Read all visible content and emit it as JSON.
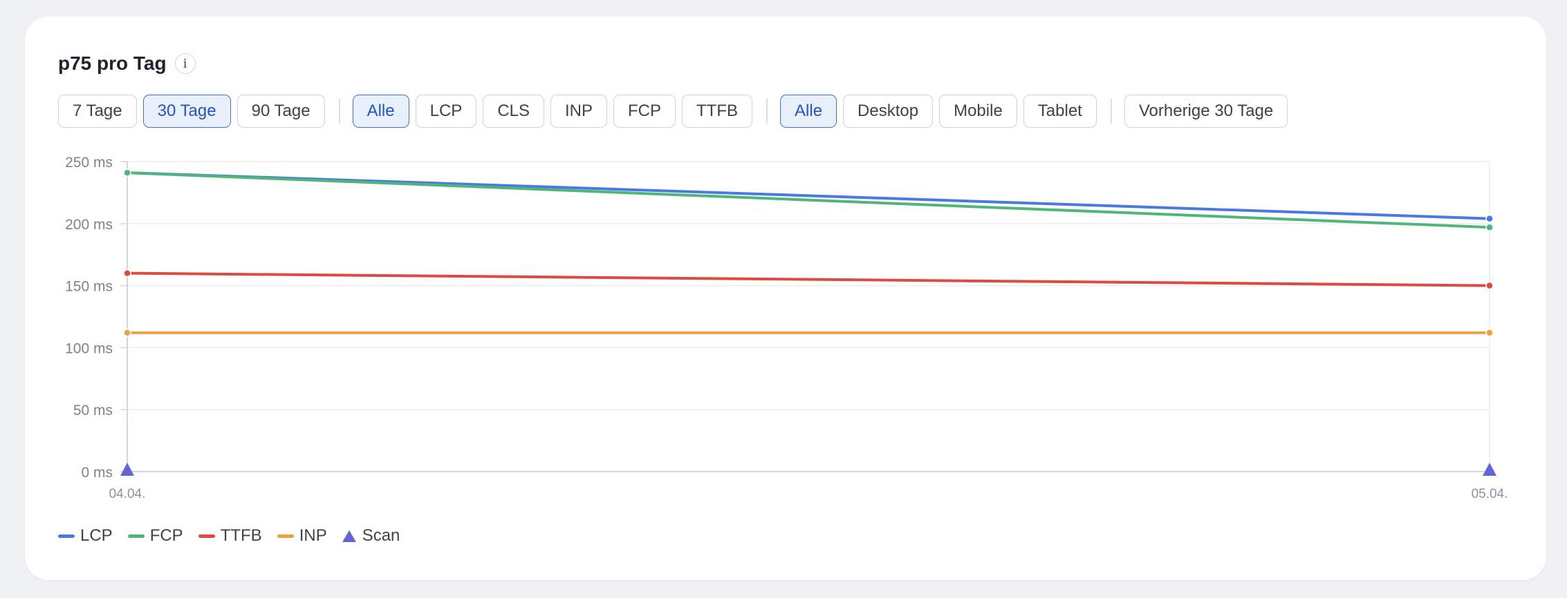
{
  "card": {
    "title": "p75 pro Tag",
    "info_label": "i"
  },
  "filters": {
    "range": [
      {
        "label": "7 Tage",
        "active": false
      },
      {
        "label": "30 Tage",
        "active": true
      },
      {
        "label": "90 Tage",
        "active": false
      }
    ],
    "metric": [
      {
        "label": "Alle",
        "active": true
      },
      {
        "label": "LCP",
        "active": false
      },
      {
        "label": "CLS",
        "active": false
      },
      {
        "label": "INP",
        "active": false
      },
      {
        "label": "FCP",
        "active": false
      },
      {
        "label": "TTFB",
        "active": false
      }
    ],
    "device": [
      {
        "label": "Alle",
        "active": true
      },
      {
        "label": "Desktop",
        "active": false
      },
      {
        "label": "Mobile",
        "active": false
      },
      {
        "label": "Tablet",
        "active": false
      }
    ],
    "compare": [
      {
        "label": "Vorherige 30 Tage",
        "active": false
      }
    ]
  },
  "colors": {
    "LCP": "#4a7ae0",
    "FCP": "#4fb57a",
    "TTFB": "#dc4a43",
    "INP": "#eca23a",
    "Scan": "#6366d9"
  },
  "chart_data": {
    "type": "line",
    "x": [
      "04.04.",
      "05.04."
    ],
    "ylim": [
      0,
      250
    ],
    "y_ticks": [
      0,
      50,
      100,
      150,
      200,
      250
    ],
    "y_tick_labels": [
      "0 ms",
      "50 ms",
      "100 ms",
      "150 ms",
      "200 ms",
      "250 ms"
    ],
    "y_unit": "ms",
    "grid": true,
    "legend_position": "bottom-left",
    "series": [
      {
        "name": "LCP",
        "values": [
          241,
          204
        ]
      },
      {
        "name": "FCP",
        "values": [
          241,
          197
        ]
      },
      {
        "name": "TTFB",
        "values": [
          160,
          150
        ]
      },
      {
        "name": "INP",
        "values": [
          112,
          112
        ]
      }
    ],
    "markers": {
      "name": "Scan",
      "shape": "triangle",
      "x": [
        "04.04.",
        "05.04."
      ],
      "y": [
        0,
        0
      ]
    }
  },
  "legend": [
    {
      "label": "LCP",
      "shape": "line"
    },
    {
      "label": "FCP",
      "shape": "line"
    },
    {
      "label": "TTFB",
      "shape": "line"
    },
    {
      "label": "INP",
      "shape": "line"
    },
    {
      "label": "Scan",
      "shape": "triangle"
    }
  ]
}
